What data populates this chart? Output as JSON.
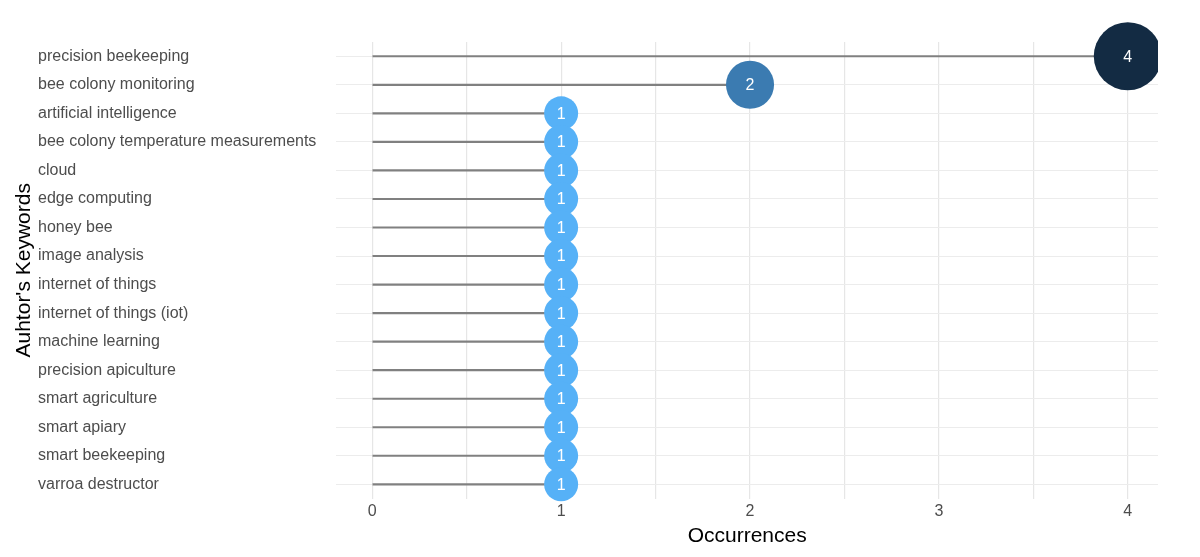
{
  "chart_data": {
    "type": "lollipop",
    "orientation": "horizontal",
    "xlabel": "Occurrences",
    "ylabel": "Auhtor's Keywords",
    "categories": [
      "precision beekeeping",
      "bee colony monitoring",
      "artificial intelligence",
      "bee colony temperature measurements",
      "cloud",
      "edge computing",
      "honey bee",
      "image analysis",
      "internet of things",
      "internet of things (iot)",
      "machine learning",
      "precision apiculture",
      "smart agriculture",
      "smart apiary",
      "smart beekeeping",
      "varroa destructor"
    ],
    "values": [
      4,
      2,
      1,
      1,
      1,
      1,
      1,
      1,
      1,
      1,
      1,
      1,
      1,
      1,
      1,
      1
    ],
    "colors": [
      "#132b43",
      "#3b7bb1",
      "#56b1f7",
      "#56b1f7",
      "#56b1f7",
      "#56b1f7",
      "#56b1f7",
      "#56b1f7",
      "#56b1f7",
      "#56b1f7",
      "#56b1f7",
      "#56b1f7",
      "#56b1f7",
      "#56b1f7",
      "#56b1f7",
      "#56b1f7"
    ],
    "sizes": [
      1,
      0.5,
      0.25,
      0.25,
      0.25,
      0.25,
      0.25,
      0.25,
      0.25,
      0.25,
      0.25,
      0.25,
      0.25,
      0.25,
      0.25,
      0.25
    ],
    "xlim": [
      -0.19,
      4.16
    ],
    "xticks": [
      0,
      {
        "value": 0.5,
        "label": null
      },
      1,
      {
        "value": 1.5,
        "label": null
      },
      2,
      {
        "value": 2.5,
        "label": null
      },
      3,
      {
        "value": 3.5,
        "label": null
      },
      4
    ],
    "grid": true,
    "data_labels": true,
    "marker": "circle"
  }
}
